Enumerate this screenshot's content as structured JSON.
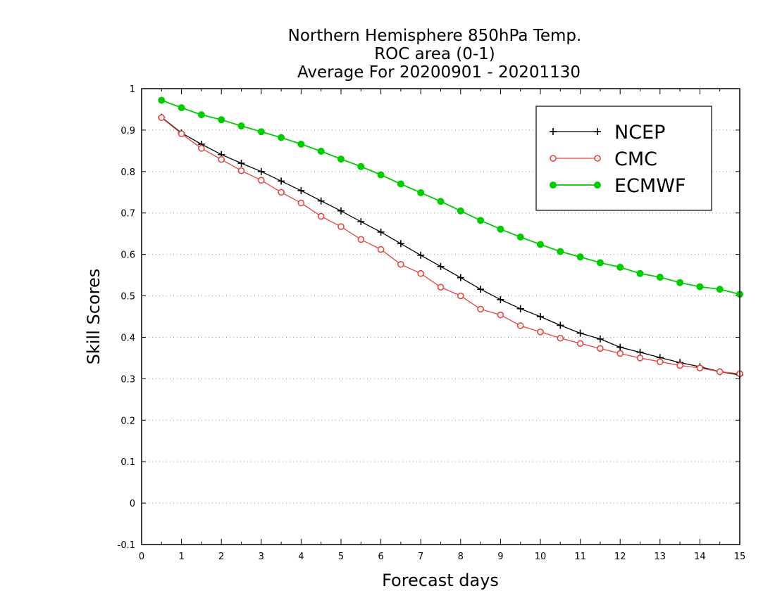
{
  "chart_data": {
    "type": "line",
    "title": [
      "Northern Hemisphere 850hPa Temp.",
      "ROC area (0-1)",
      "Average For 20200901 - 20201130"
    ],
    "xlabel": "Forecast days",
    "ylabel": "Skill Scores",
    "xlim": [
      0,
      15
    ],
    "ylim": [
      -0.1,
      1
    ],
    "x_ticks": [
      "0",
      "1",
      "2",
      "3",
      "4",
      "5",
      "6",
      "7",
      "8",
      "9",
      "10",
      "11",
      "12",
      "13",
      "14",
      "15"
    ],
    "y_ticks": [
      "-0.1",
      "0",
      "0.1",
      "0.2",
      "0.3",
      "0.4",
      "0.5",
      "0.6",
      "0.7",
      "0.8",
      "0.9",
      "1"
    ],
    "grid": "horizontal dotted",
    "legend_position": "top-right",
    "x": [
      0.5,
      1,
      1.5,
      2,
      2.5,
      3,
      3.5,
      4,
      4.5,
      5,
      5.5,
      6,
      6.5,
      7,
      7.5,
      8,
      8.5,
      9,
      9.5,
      10,
      10.5,
      11,
      11.5,
      12,
      12.5,
      13,
      13.5,
      14,
      14.5,
      15
    ],
    "series": [
      {
        "name": "NCEP",
        "color": "#000000",
        "marker": "plus",
        "values": [
          0.931,
          0.893,
          0.866,
          0.841,
          0.82,
          0.8,
          0.777,
          0.754,
          0.729,
          0.705,
          0.679,
          0.654,
          0.626,
          0.598,
          0.571,
          0.544,
          0.516,
          0.491,
          0.469,
          0.45,
          0.429,
          0.41,
          0.396,
          0.376,
          0.364,
          0.351,
          0.339,
          0.329,
          0.317,
          0.309
        ]
      },
      {
        "name": "CMC",
        "color": "#e8433f",
        "marker": "open-circle",
        "values": [
          0.93,
          0.891,
          0.856,
          0.829,
          0.802,
          0.779,
          0.75,
          0.724,
          0.692,
          0.667,
          0.636,
          0.612,
          0.576,
          0.554,
          0.521,
          0.5,
          0.468,
          0.454,
          0.428,
          0.413,
          0.398,
          0.385,
          0.373,
          0.361,
          0.35,
          0.341,
          0.332,
          0.326,
          0.317,
          0.312
        ]
      },
      {
        "name": "ECMWF",
        "color": "#00cc00",
        "marker": "filled-circle",
        "values": [
          0.972,
          0.954,
          0.937,
          0.925,
          0.91,
          0.896,
          0.882,
          0.866,
          0.849,
          0.83,
          0.812,
          0.792,
          0.77,
          0.749,
          0.728,
          0.705,
          0.682,
          0.661,
          0.642,
          0.624,
          0.607,
          0.594,
          0.58,
          0.569,
          0.554,
          0.545,
          0.532,
          0.522,
          0.516,
          0.504
        ]
      }
    ]
  }
}
